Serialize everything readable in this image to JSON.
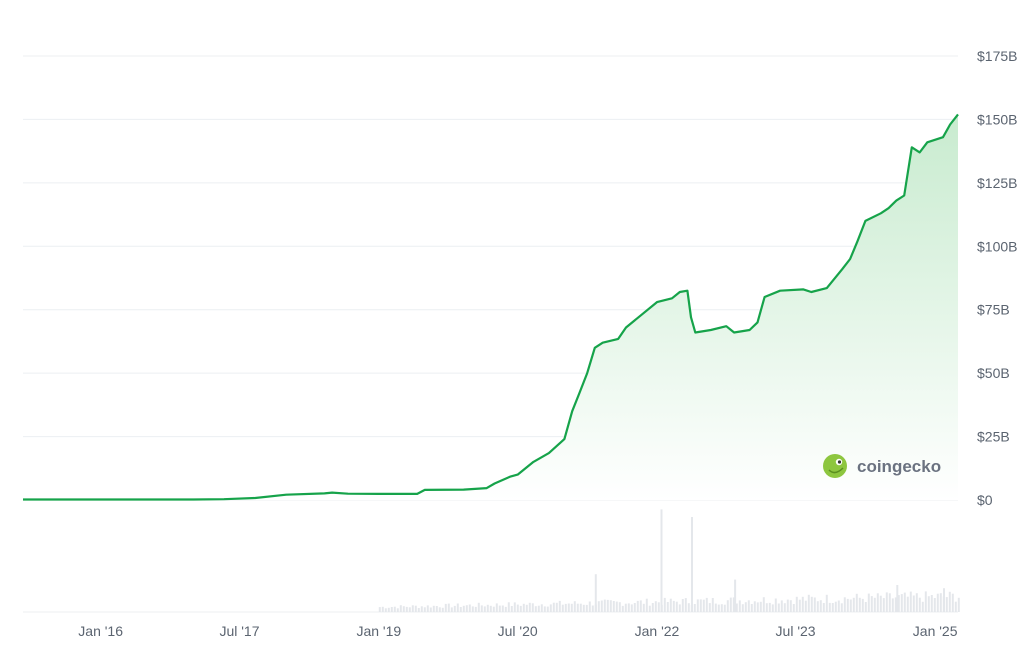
{
  "colors": {
    "line": "#16a34a",
    "area_top": "#c8ebcf",
    "area_bottom": "#ffffff",
    "grid": "#eceff2",
    "volume": "#e4e7eb",
    "axis_text": "#5b6470",
    "watermark_gecko": "#8dc63f"
  },
  "watermark": {
    "text": "coingecko",
    "icon": "gecko-logo-icon"
  },
  "chart_data": {
    "type": "area",
    "grid": true,
    "legend": "none",
    "y_axis_position": "right",
    "ylim": [
      0,
      175
    ],
    "y_ticks": [
      {
        "value": 0,
        "label": "$0"
      },
      {
        "value": 25,
        "label": "$25B"
      },
      {
        "value": 50,
        "label": "$50B"
      },
      {
        "value": 75,
        "label": "$75B"
      },
      {
        "value": 100,
        "label": "$100B"
      },
      {
        "value": 125,
        "label": "$125B"
      },
      {
        "value": 150,
        "label": "$150B"
      },
      {
        "value": 175,
        "label": "$175B"
      }
    ],
    "x_ticks": [
      {
        "value": "2016-01-01",
        "label": "Jan '16"
      },
      {
        "value": "2017-07-01",
        "label": "Jul '17"
      },
      {
        "value": "2019-01-01",
        "label": "Jan '19"
      },
      {
        "value": "2020-07-01",
        "label": "Jul '20"
      },
      {
        "value": "2022-01-01",
        "label": "Jan '22"
      },
      {
        "value": "2023-07-01",
        "label": "Jul '23"
      },
      {
        "value": "2025-01-01",
        "label": "Jan '25"
      }
    ],
    "xlim": [
      "2015-03-01",
      "2025-04-01"
    ],
    "series": [
      {
        "unit": "USD billions",
        "points": [
          [
            "2015-03-01",
            0.2
          ],
          [
            "2016-01-01",
            0.2
          ],
          [
            "2017-01-01",
            0.2
          ],
          [
            "2017-05-01",
            0.3
          ],
          [
            "2017-09-01",
            0.8
          ],
          [
            "2018-01-01",
            2.1
          ],
          [
            "2018-06-01",
            2.6
          ],
          [
            "2018-07-01",
            2.9
          ],
          [
            "2018-09-01",
            2.5
          ],
          [
            "2019-01-01",
            2.4
          ],
          [
            "2019-06-01",
            2.4
          ],
          [
            "2019-07-01",
            4.0
          ],
          [
            "2019-12-01",
            4.1
          ],
          [
            "2020-03-01",
            4.7
          ],
          [
            "2020-04-01",
            6.5
          ],
          [
            "2020-06-01",
            9.2
          ],
          [
            "2020-07-01",
            10.0
          ],
          [
            "2020-09-01",
            15.0
          ],
          [
            "2020-11-01",
            18.5
          ],
          [
            "2021-01-01",
            24.0
          ],
          [
            "2021-02-01",
            35.0
          ],
          [
            "2021-03-01",
            42.0
          ],
          [
            "2021-04-01",
            50.0
          ],
          [
            "2021-05-01",
            60.0
          ],
          [
            "2021-06-01",
            62.0
          ],
          [
            "2021-08-01",
            63.5
          ],
          [
            "2021-09-01",
            68.0
          ],
          [
            "2021-11-01",
            73.0
          ],
          [
            "2022-01-01",
            78.0
          ],
          [
            "2022-03-01",
            79.5
          ],
          [
            "2022-04-01",
            82.0
          ],
          [
            "2022-05-01",
            82.5
          ],
          [
            "2022-05-15",
            72.0
          ],
          [
            "2022-06-01",
            66.0
          ],
          [
            "2022-08-01",
            67.0
          ],
          [
            "2022-10-01",
            68.5
          ],
          [
            "2022-11-01",
            66.0
          ],
          [
            "2023-01-01",
            67.0
          ],
          [
            "2023-02-01",
            70.0
          ],
          [
            "2023-03-01",
            80.0
          ],
          [
            "2023-05-01",
            82.5
          ],
          [
            "2023-08-01",
            83.0
          ],
          [
            "2023-09-01",
            82.0
          ],
          [
            "2023-11-01",
            83.5
          ],
          [
            "2024-01-01",
            91.0
          ],
          [
            "2024-02-01",
            95.0
          ],
          [
            "2024-03-01",
            102.0
          ],
          [
            "2024-04-01",
            110.0
          ],
          [
            "2024-06-01",
            113.0
          ],
          [
            "2024-07-01",
            115.0
          ],
          [
            "2024-08-01",
            118.0
          ],
          [
            "2024-09-01",
            120.0
          ],
          [
            "2024-10-01",
            139.0
          ],
          [
            "2024-11-01",
            137.0
          ],
          [
            "2024-12-01",
            141.0
          ],
          [
            "2025-02-01",
            143.0
          ],
          [
            "2025-03-01",
            148.0
          ],
          [
            "2025-04-01",
            152.0
          ]
        ]
      }
    ],
    "volume_series": {
      "unit": "relative",
      "spikes": [
        [
          "2021-05-01",
          0.35
        ],
        [
          "2022-01-15",
          0.95
        ],
        [
          "2022-05-15",
          0.88
        ],
        [
          "2022-11-01",
          0.3
        ],
        [
          "2024-08-01",
          0.25
        ],
        [
          "2025-02-01",
          0.22
        ]
      ]
    }
  }
}
